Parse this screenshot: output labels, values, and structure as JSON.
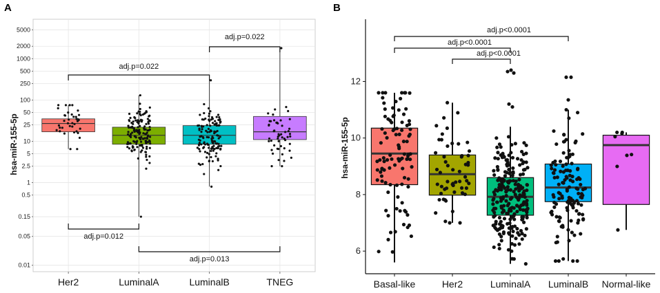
{
  "chart_data": [
    {
      "panel": "A",
      "type": "box",
      "scale": "log",
      "ylabel": "hsa-miR-155-5p",
      "yticks": [
        0.01,
        0.05,
        0.15,
        0.5,
        1,
        2.5,
        5,
        10,
        25,
        50,
        100,
        250,
        500,
        1000,
        2000,
        5000
      ],
      "ytick_labels": [
        "0.01",
        "0.05",
        "0.15",
        "0.5",
        "1",
        "2.5",
        "5",
        "10",
        "25",
        "50",
        "100",
        "250",
        "500",
        "1000",
        "2000",
        "5000"
      ],
      "ylim": [
        0.007,
        9000
      ],
      "grid": true,
      "categories": [
        "Her2",
        "LuminalA",
        "LuminalB",
        "TNEG"
      ],
      "boxes": [
        {
          "name": "Her2",
          "color": "#F8766D",
          "q1": 17,
          "median": 27,
          "q3": 35,
          "whisker_low": 6.5,
          "whisker_high": 75,
          "n_points": 35
        },
        {
          "name": "LuminalA",
          "color": "#7CAE00",
          "q1": 8.5,
          "median": 14,
          "q3": 22,
          "whisker_low": 0.15,
          "whisker_high": 130,
          "n_points": 150
        },
        {
          "name": "LuminalB",
          "color": "#00BFC4",
          "q1": 8.5,
          "median": 14,
          "q3": 24,
          "whisker_low": 0.8,
          "whisker_high": 300,
          "n_points": 130
        },
        {
          "name": "TNEG",
          "color": "#C77CFF",
          "q1": 11,
          "median": 17,
          "q3": 40,
          "whisker_low": 2.5,
          "whisker_high": 1800,
          "n_points": 50
        }
      ],
      "comparisons": [
        {
          "label": "adj.p=0.022",
          "from": "LuminalB",
          "to": "TNEG",
          "position": "top"
        },
        {
          "label": "adj.p=0.022",
          "from": "Her2",
          "to": "LuminalB",
          "position": "top"
        },
        {
          "label": "adj.p=0.012",
          "from": "Her2",
          "to": "LuminalA",
          "position": "bottom"
        },
        {
          "label": "adj.p=0.013",
          "from": "LuminalA",
          "to": "TNEG",
          "position": "bottom"
        }
      ]
    },
    {
      "panel": "B",
      "type": "box",
      "scale": "linear",
      "ylabel": "hsa-miR-155-5p",
      "yticks": [
        6,
        8,
        10,
        12
      ],
      "ytick_labels": [
        "6",
        "8",
        "10",
        "12"
      ],
      "ylim": [
        5.2,
        14.2
      ],
      "grid": false,
      "categories": [
        "Basal-like",
        "Her2",
        "LuminalA",
        "LuminalB",
        "Normal-like"
      ],
      "boxes": [
        {
          "name": "Basal-like",
          "color": "#F8766D",
          "q1": 8.35,
          "median": 9.45,
          "q3": 10.35,
          "whisker_low": 5.6,
          "whisker_high": 11.6,
          "n_points": 100
        },
        {
          "name": "Her2",
          "color": "#A3A500",
          "q1": 7.98,
          "median": 8.72,
          "q3": 9.4,
          "whisker_low": 7.0,
          "whisker_high": 11.25,
          "n_points": 55
        },
        {
          "name": "LuminalA",
          "color": "#00BF7D",
          "q1": 7.27,
          "median": 7.92,
          "q3": 8.6,
          "whisker_low": 5.55,
          "whisker_high": 10.4,
          "n_points": 230
        },
        {
          "name": "LuminalB",
          "color": "#00B0F6",
          "q1": 7.75,
          "median": 8.25,
          "q3": 9.08,
          "whisker_low": 5.65,
          "whisker_high": 11.0,
          "n_points": 130
        },
        {
          "name": "Normal-like",
          "color": "#E76BF3",
          "q1": 7.65,
          "median": 9.75,
          "q3": 10.1,
          "whisker_low": 6.75,
          "whisker_high": 10.2,
          "n_points": 8
        }
      ],
      "comparisons": [
        {
          "label": "adj.p<0.0001",
          "from": "Basal-like",
          "to": "LuminalB",
          "position": "top"
        },
        {
          "label": "adj.p<0.0001",
          "from": "Basal-like",
          "to": "LuminalA",
          "position": "top"
        },
        {
          "label": "adj.p<0.0001",
          "from": "Her2",
          "to": "LuminalA",
          "position": "top"
        }
      ]
    }
  ]
}
